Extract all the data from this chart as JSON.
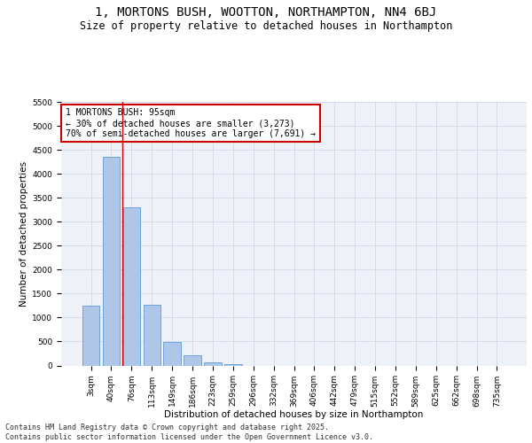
{
  "title_line1": "1, MORTONS BUSH, WOOTTON, NORTHAMPTON, NN4 6BJ",
  "title_line2": "Size of property relative to detached houses in Northampton",
  "xlabel": "Distribution of detached houses by size in Northampton",
  "ylabel": "Number of detached properties",
  "categories": [
    "3sqm",
    "40sqm",
    "76sqm",
    "113sqm",
    "149sqm",
    "186sqm",
    "223sqm",
    "259sqm",
    "296sqm",
    "332sqm",
    "369sqm",
    "406sqm",
    "442sqm",
    "479sqm",
    "515sqm",
    "552sqm",
    "589sqm",
    "625sqm",
    "662sqm",
    "698sqm",
    "735sqm"
  ],
  "values": [
    1250,
    4350,
    3300,
    1270,
    490,
    210,
    70,
    30,
    0,
    0,
    0,
    0,
    0,
    0,
    0,
    0,
    0,
    0,
    0,
    0,
    0
  ],
  "bar_color": "#aec6e8",
  "bar_edge_color": "#5b9bd5",
  "grid_color": "#d0d8e8",
  "background_color": "#eef2f8",
  "vline_color": "#cc0000",
  "annotation_box_text": "1 MORTONS BUSH: 95sqm\n← 30% of detached houses are smaller (3,273)\n70% of semi-detached houses are larger (7,691) →",
  "footer_line1": "Contains HM Land Registry data © Crown copyright and database right 2025.",
  "footer_line2": "Contains public sector information licensed under the Open Government Licence v3.0.",
  "ylim": [
    0,
    5500
  ],
  "yticks": [
    0,
    500,
    1000,
    1500,
    2000,
    2500,
    3000,
    3500,
    4000,
    4500,
    5000,
    5500
  ],
  "title_fontsize": 10,
  "subtitle_fontsize": 8.5,
  "axis_label_fontsize": 7.5,
  "tick_fontsize": 6.5,
  "annotation_fontsize": 7,
  "footer_fontsize": 6
}
